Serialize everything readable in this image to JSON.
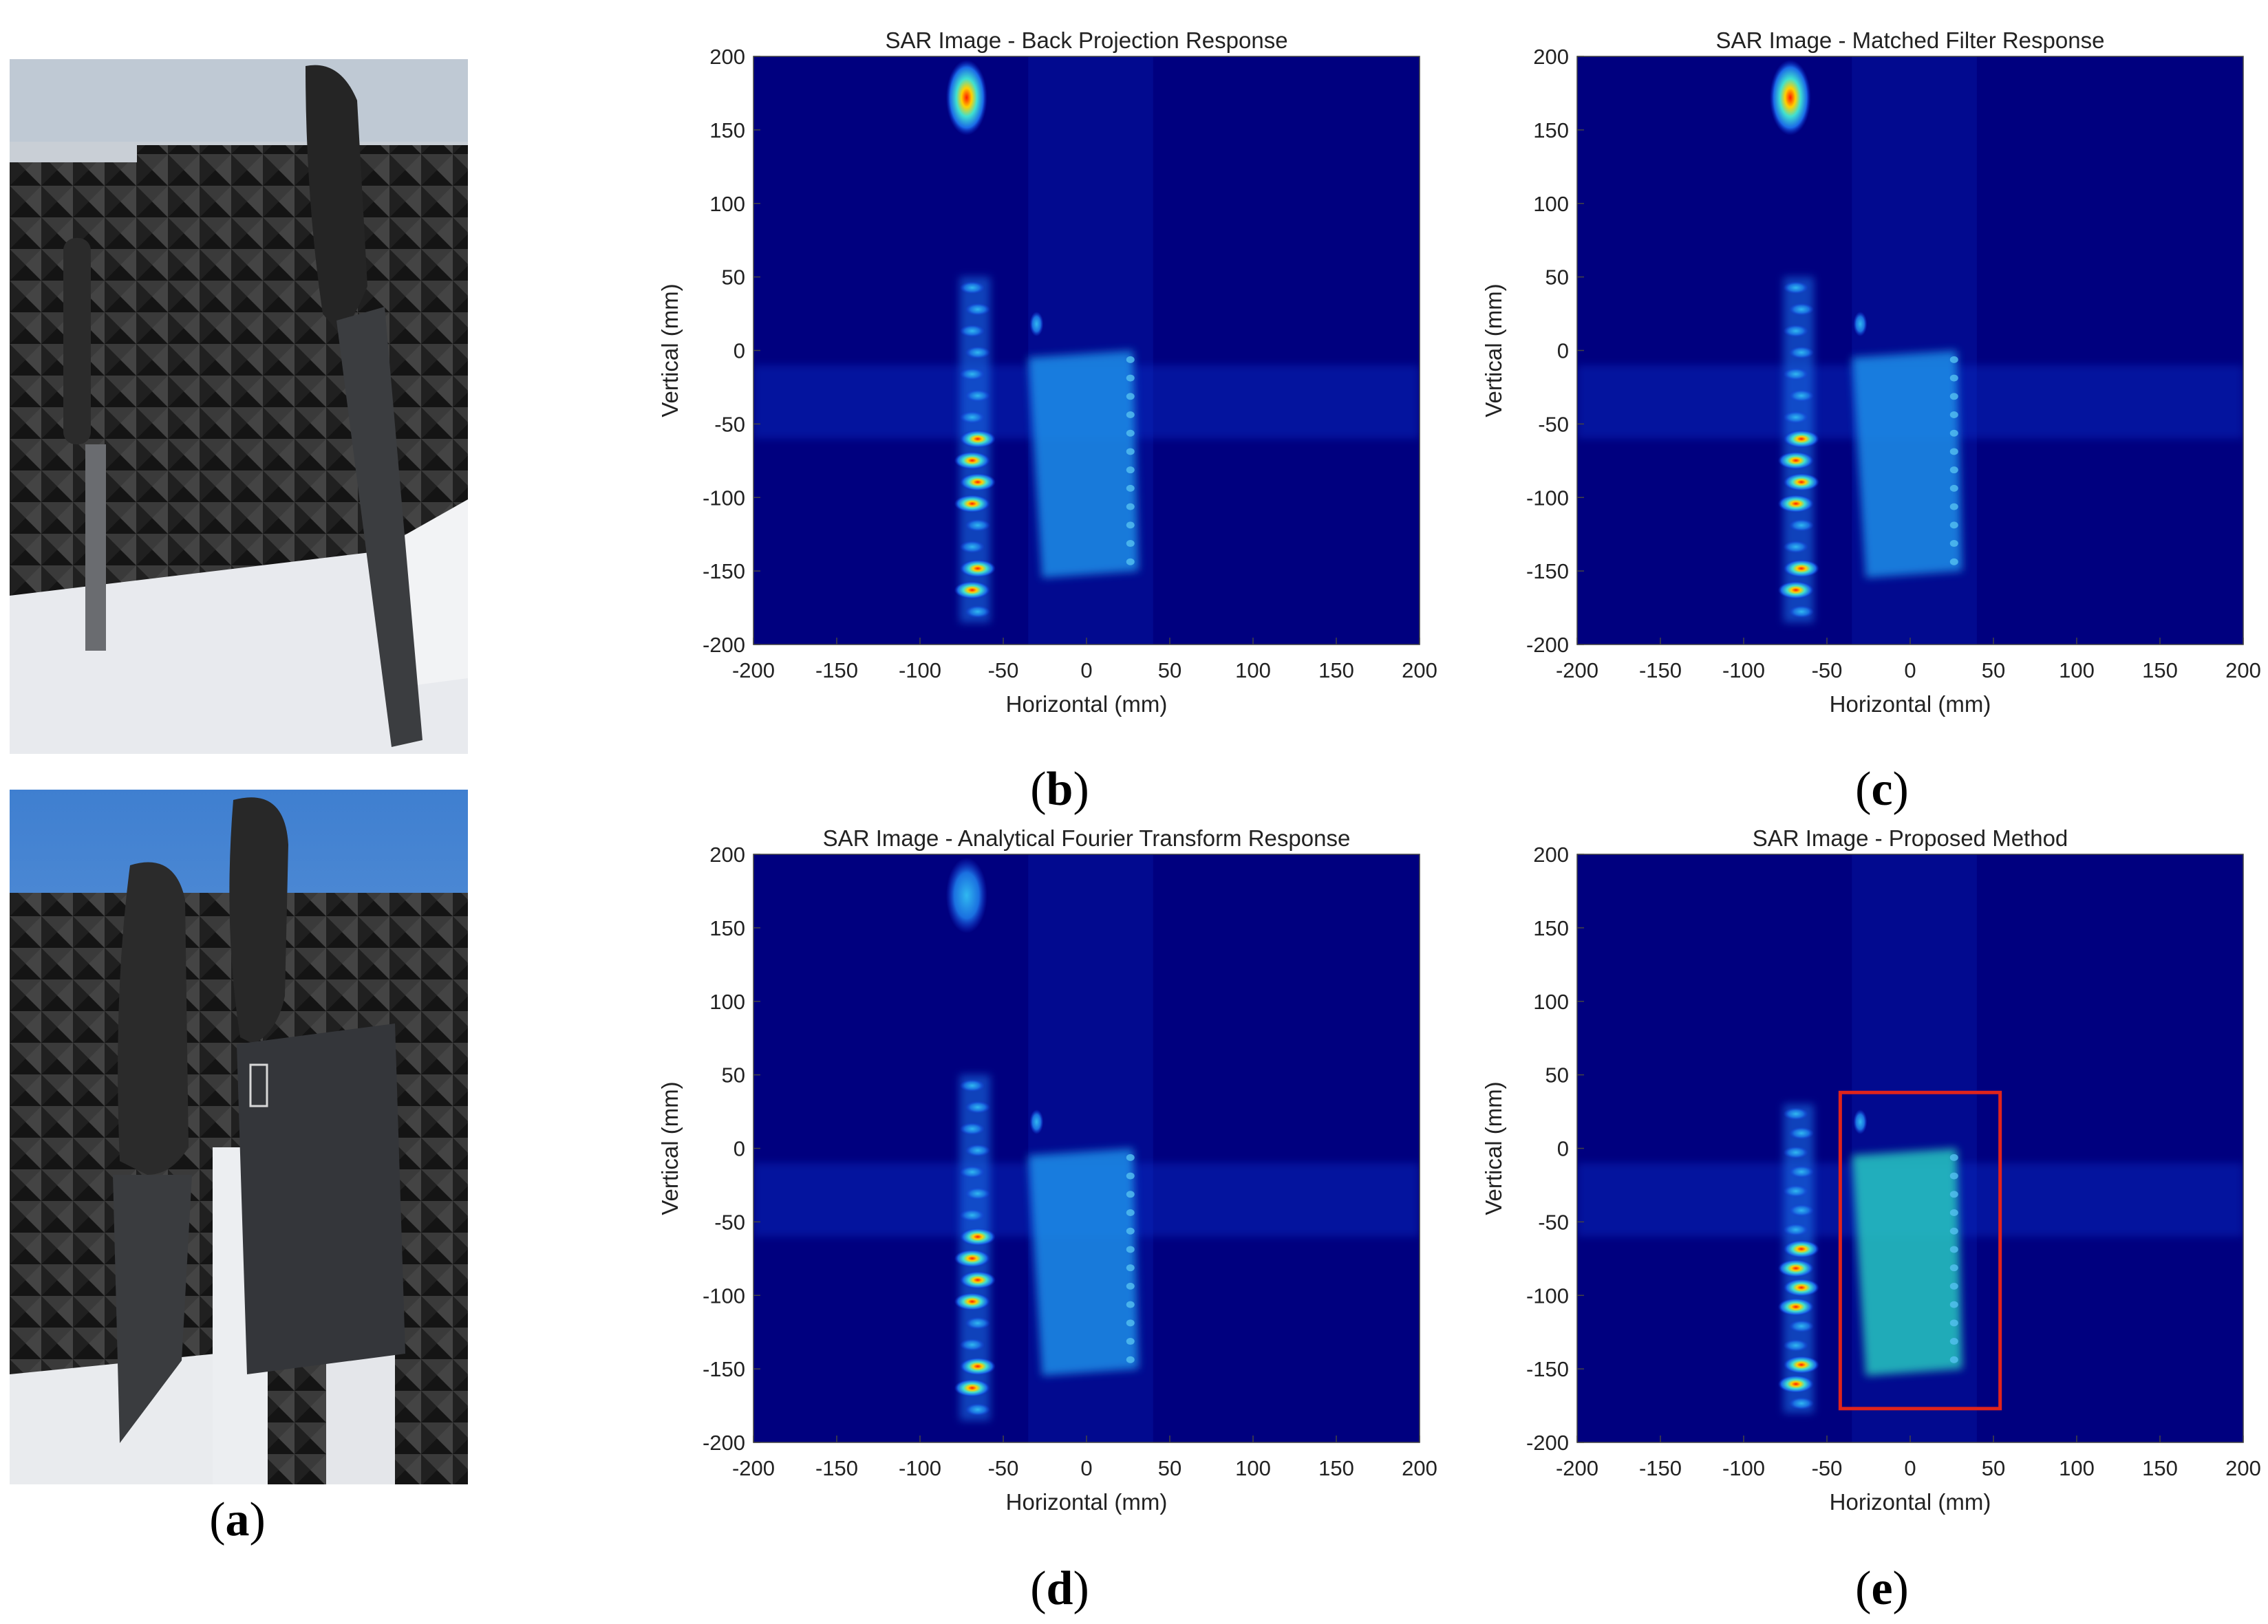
{
  "panel_labels": {
    "a": "a",
    "b": "b",
    "c": "c",
    "d": "d",
    "e": "e"
  },
  "photos": [
    {
      "description": "two knives standing in foam blocks in front of pyramidal absorber foam"
    },
    {
      "description": "two knives with handles standing in foam block in front of pyramidal absorber foam"
    }
  ],
  "colors": {
    "background": "#00007f",
    "weak": "#0a3ad8",
    "medium": "#1aa0f0",
    "strong": "#40e6d0",
    "hot": "#ff2000",
    "box": "#e0241c"
  },
  "chart_data": [
    {
      "type": "heatmap",
      "title": "SAR Image - Back Projection Response",
      "xlabel": "Horizontal (mm)",
      "ylabel": "Vertical (mm)",
      "xlim": [
        -200,
        200
      ],
      "ylim": [
        -200,
        200
      ],
      "xticks": [
        "-200",
        "-150",
        "-100",
        "-50",
        "0",
        "50",
        "100",
        "150",
        "200"
      ],
      "yticks": [
        "200",
        "150",
        "100",
        "50",
        "0",
        "-50",
        "-100",
        "-150",
        "-200"
      ],
      "colormap": "jet",
      "features": [
        {
          "kind": "blob",
          "x": -72,
          "y": 172,
          "level": "hot"
        },
        {
          "kind": "column",
          "x": -67,
          "y_from": 50,
          "y_to": -185,
          "level": "hot"
        },
        {
          "kind": "plate",
          "x_from": -35,
          "x_to": 28,
          "y_from": 0,
          "y_to": -150,
          "level": "medium"
        }
      ]
    },
    {
      "type": "heatmap",
      "title": "SAR Image - Matched Filter Response",
      "xlabel": "Horizontal (mm)",
      "ylabel": "Vertical (mm)",
      "xlim": [
        -200,
        200
      ],
      "ylim": [
        -200,
        200
      ],
      "xticks": [
        "-200",
        "-150",
        "-100",
        "-50",
        "0",
        "50",
        "100",
        "150",
        "200"
      ],
      "yticks": [
        "200",
        "150",
        "100",
        "50",
        "0",
        "-50",
        "-100",
        "-150",
        "-200"
      ],
      "colormap": "jet",
      "features": [
        {
          "kind": "blob",
          "x": -72,
          "y": 172,
          "level": "hot"
        },
        {
          "kind": "column",
          "x": -67,
          "y_from": 50,
          "y_to": -185,
          "level": "hot"
        },
        {
          "kind": "plate",
          "x_from": -35,
          "x_to": 28,
          "y_from": 0,
          "y_to": -150,
          "level": "medium"
        }
      ]
    },
    {
      "type": "heatmap",
      "title": "SAR Image - Analytical Fourier Transform Response",
      "xlabel": "Horizontal (mm)",
      "ylabel": "Vertical (mm)",
      "xlim": [
        -200,
        200
      ],
      "ylim": [
        -200,
        200
      ],
      "xticks": [
        "-200",
        "-150",
        "-100",
        "-50",
        "0",
        "50",
        "100",
        "150",
        "200"
      ],
      "yticks": [
        "200",
        "150",
        "100",
        "50",
        "0",
        "-50",
        "-100",
        "-150",
        "-200"
      ],
      "colormap": "jet",
      "features": [
        {
          "kind": "blob",
          "x": -72,
          "y": 172,
          "level": "medium"
        },
        {
          "kind": "column",
          "x": -67,
          "y_from": 50,
          "y_to": -185,
          "level": "hot"
        },
        {
          "kind": "plate",
          "x_from": -35,
          "x_to": 28,
          "y_from": 0,
          "y_to": -150,
          "level": "medium"
        }
      ]
    },
    {
      "type": "heatmap",
      "title": "SAR Image - Proposed Method",
      "xlabel": "Horizontal (mm)",
      "ylabel": "Vertical (mm)",
      "xlim": [
        -200,
        200
      ],
      "ylim": [
        -200,
        200
      ],
      "xticks": [
        "-200",
        "-150",
        "-100",
        "-50",
        "0",
        "50",
        "100",
        "150",
        "200"
      ],
      "yticks": [
        "200",
        "150",
        "100",
        "50",
        "0",
        "-50",
        "-100",
        "-150",
        "-200"
      ],
      "colormap": "jet",
      "features": [
        {
          "kind": "column",
          "x": -67,
          "y_from": 30,
          "y_to": -180,
          "level": "hot"
        },
        {
          "kind": "plate",
          "x_from": -35,
          "x_to": 28,
          "y_from": 0,
          "y_to": -150,
          "level": "strong"
        }
      ],
      "highlight_box": {
        "x_from": -42,
        "x_to": 54,
        "y_from": 38,
        "y_to": -177
      }
    }
  ]
}
